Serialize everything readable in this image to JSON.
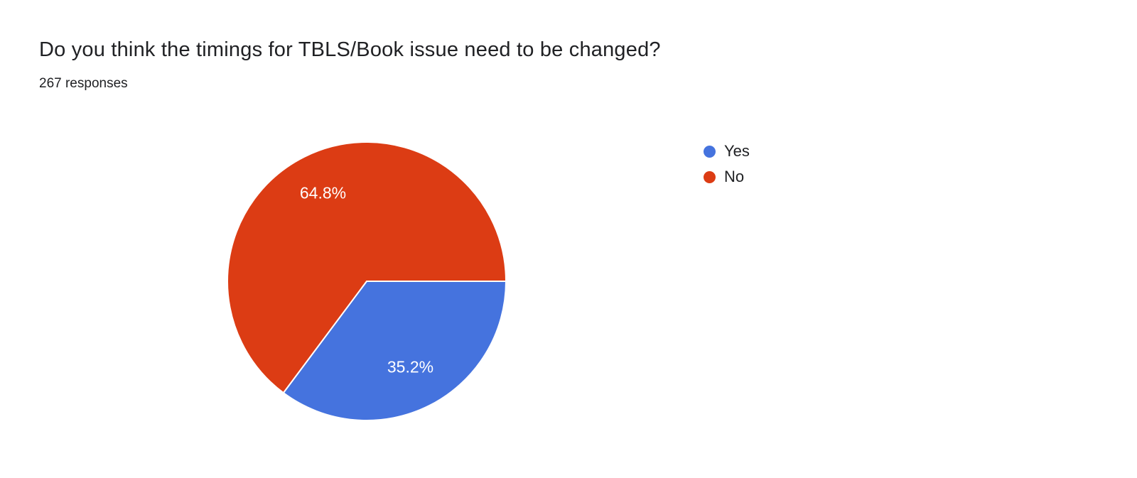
{
  "header": {
    "title": "Do you think the timings for TBLS/Book issue need to be changed?",
    "responses": "267 responses"
  },
  "chart_data": {
    "type": "pie",
    "title": "Do you think the timings for TBLS/Book issue need to be changed?",
    "responses_count": 267,
    "categories": [
      "Yes",
      "No"
    ],
    "values": [
      35.2,
      64.8
    ],
    "unit": "%",
    "labels": [
      "35.2%",
      "64.8%"
    ],
    "colors": [
      "#4573de",
      "#dc3c14"
    ],
    "legend_position": "right",
    "start_angle_deg": 0,
    "direction": "clockwise",
    "label_color": "#ffffff"
  }
}
